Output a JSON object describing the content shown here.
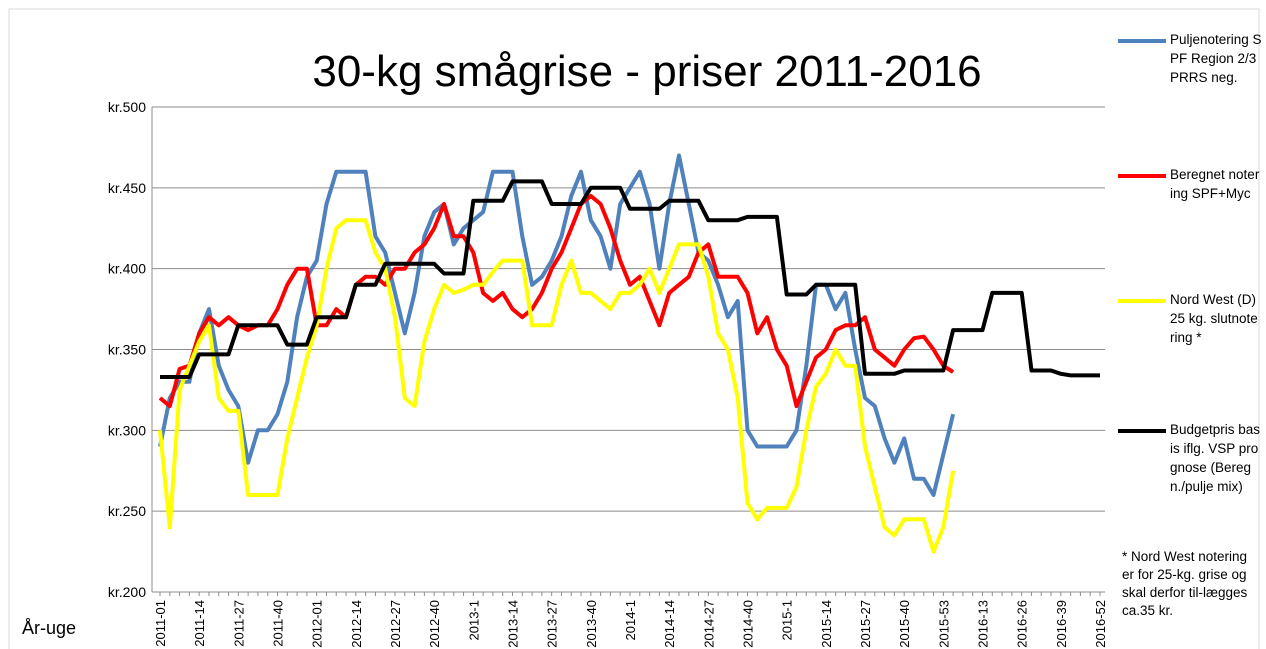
{
  "chart_data": {
    "type": "line",
    "title": "30-kg smågrise - priser 2011-2016",
    "xlabel": "År-uge",
    "legend": "right",
    "grid": true,
    "categories": [
      "2011-01",
      null,
      null,
      null,
      "2011-14",
      null,
      null,
      null,
      "2011-27",
      null,
      null,
      null,
      "2011-40",
      null,
      null,
      null,
      "2012-01",
      null,
      null,
      null,
      "2012-14",
      null,
      null,
      null,
      "2012-27",
      null,
      null,
      null,
      "2012-40",
      null,
      null,
      null,
      "2013-1",
      null,
      null,
      null,
      "2013-14",
      null,
      null,
      null,
      "2013-27",
      null,
      null,
      null,
      "2013-40",
      null,
      null,
      null,
      "2014-1",
      null,
      null,
      null,
      "2014-14",
      null,
      null,
      null,
      "2014-27",
      null,
      null,
      null,
      "2014-40",
      null,
      null,
      null,
      "2015-1",
      null,
      null,
      null,
      "2015-14",
      null,
      null,
      null,
      "2015-27",
      null,
      null,
      null,
      "2015-40",
      null,
      null,
      null,
      "2015-53",
      null,
      null,
      null,
      "2016-13",
      null,
      null,
      null,
      "2016-26",
      null,
      null,
      null,
      "2016-39",
      null,
      null,
      null,
      "2016-52"
    ],
    "ylim": [
      200,
      500
    ],
    "yticks": [
      {
        "value": 200,
        "label": "kr.200"
      },
      {
        "value": 250,
        "label": "kr.250"
      },
      {
        "value": 300,
        "label": "kr.300"
      },
      {
        "value": 350,
        "label": "kr.350"
      },
      {
        "value": 400,
        "label": "kr.400"
      },
      {
        "value": 450,
        "label": "kr.450"
      },
      {
        "value": 500,
        "label": "kr.500"
      }
    ],
    "series": [
      {
        "name": "Puljenotering SPF Region 2/3 PRRS neg.",
        "color": "#4f81bd",
        "values": [
          290,
          320,
          330,
          330,
          360,
          375,
          340,
          325,
          315,
          280,
          300,
          300,
          310,
          330,
          370,
          395,
          405,
          440,
          460,
          460,
          460,
          460,
          420,
          410,
          385,
          360,
          385,
          420,
          435,
          440,
          415,
          425,
          430,
          435,
          460,
          460,
          460,
          420,
          390,
          395,
          405,
          420,
          445,
          460,
          430,
          420,
          400,
          440,
          450,
          460,
          440,
          400,
          440,
          470,
          440,
          410,
          405,
          390,
          370,
          380,
          300,
          290,
          290,
          290,
          290,
          300,
          340,
          390,
          390,
          375,
          385,
          350,
          320,
          315,
          295,
          280,
          295,
          270,
          270,
          260,
          285,
          310,
          null,
          null,
          null,
          null,
          null,
          null,
          null,
          null,
          null,
          null,
          null,
          null,
          null,
          null,
          null
        ]
      },
      {
        "name": "Beregnet notering SPF+Myc",
        "color": "#ff0000",
        "values": [
          320,
          315,
          338,
          340,
          360,
          370,
          365,
          370,
          365,
          362,
          365,
          365,
          375,
          390,
          400,
          400,
          365,
          365,
          375,
          370,
          390,
          395,
          395,
          390,
          400,
          400,
          410,
          415,
          425,
          440,
          420,
          420,
          410,
          385,
          380,
          385,
          375,
          370,
          375,
          385,
          400,
          410,
          425,
          440,
          445,
          440,
          425,
          405,
          390,
          395,
          380,
          365,
          385,
          390,
          395,
          410,
          415,
          395,
          395,
          395,
          385,
          360,
          370,
          350,
          340,
          315,
          330,
          345,
          350,
          362,
          365,
          365,
          370,
          350,
          345,
          340,
          350,
          357,
          358,
          350,
          340,
          336,
          null,
          null,
          null,
          null,
          null,
          null,
          null,
          null,
          null,
          null,
          null,
          null,
          null,
          null,
          null
        ]
      },
      {
        "name": "Nord West (D) 25 kg. slutnotering *",
        "color": "#ffff00",
        "values": [
          300,
          240,
          325,
          340,
          355,
          365,
          320,
          312,
          312,
          260,
          260,
          260,
          260,
          295,
          320,
          345,
          365,
          400,
          425,
          430,
          430,
          430,
          410,
          400,
          370,
          320,
          315,
          355,
          375,
          390,
          385,
          387,
          390,
          390,
          398,
          405,
          405,
          405,
          365,
          365,
          365,
          390,
          405,
          385,
          385,
          380,
          375,
          385,
          385,
          390,
          400,
          385,
          400,
          415,
          415,
          415,
          395,
          360,
          350,
          320,
          255,
          245,
          252,
          252,
          252,
          265,
          300,
          327,
          335,
          350,
          340,
          340,
          290,
          265,
          240,
          235,
          245,
          245,
          245,
          225,
          240,
          275,
          null,
          null,
          null,
          null,
          null,
          null,
          null,
          null,
          null,
          null,
          null,
          null,
          null,
          null,
          null
        ]
      },
      {
        "name": "Budgetpris basis iflg. VSP prognose (Beregn./pulje mix)",
        "color": "#000000",
        "values": [
          333,
          333,
          333,
          333,
          347,
          347,
          347,
          347,
          365,
          365,
          365,
          365,
          365,
          353,
          353,
          353,
          370,
          370,
          370,
          370,
          390,
          390,
          390,
          403,
          403,
          403,
          403,
          403,
          403,
          397,
          397,
          397,
          442,
          442,
          442,
          442,
          454,
          454,
          454,
          454,
          440,
          440,
          440,
          440,
          450,
          450,
          450,
          450,
          437,
          437,
          437,
          437,
          442,
          442,
          442,
          442,
          430,
          430,
          430,
          430,
          432,
          432,
          432,
          432,
          384,
          384,
          384,
          390,
          390,
          390,
          390,
          390,
          335,
          335,
          335,
          335,
          337,
          337,
          337,
          337,
          337,
          362,
          362,
          362,
          362,
          385,
          385,
          385,
          385,
          337,
          337,
          337,
          335,
          334,
          334,
          334,
          334
        ]
      }
    ],
    "annotation": "* Nord West notering er for 25-kg. grise og skal derfor til-lægges ca.35 kr."
  }
}
